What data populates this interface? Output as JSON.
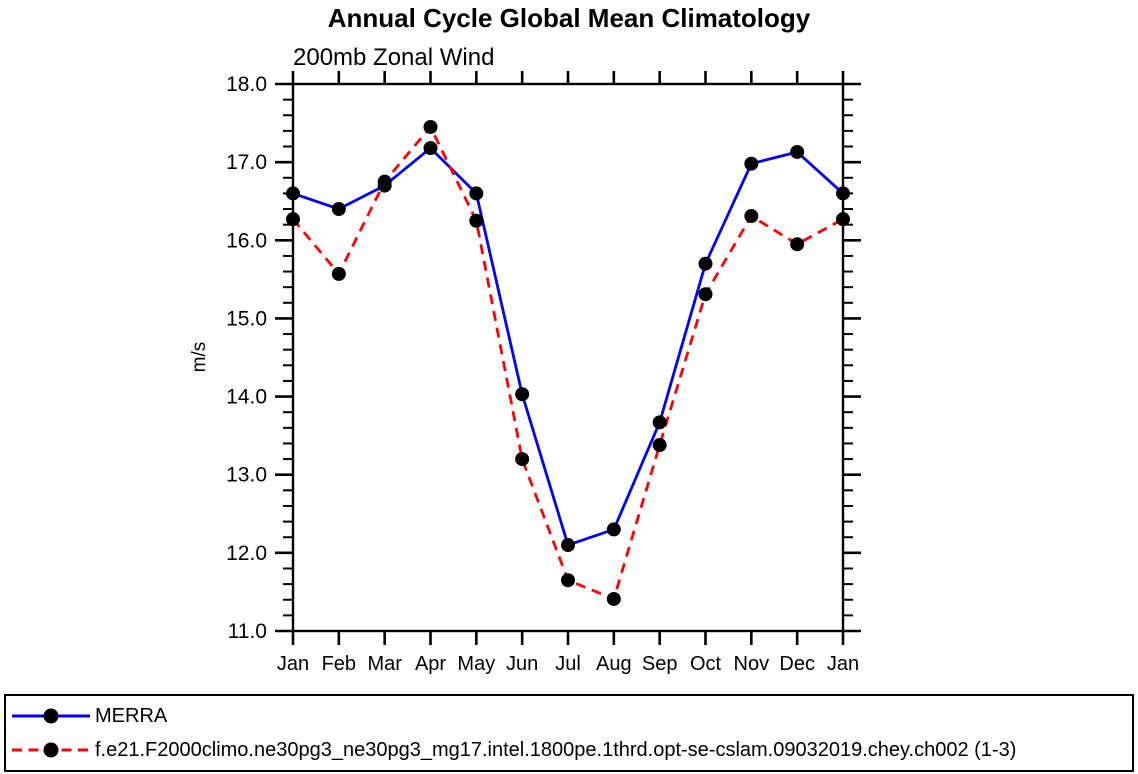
{
  "chart_data": {
    "type": "line",
    "title": "Annual Cycle Global Mean Climatology",
    "subtitle": "200mb Zonal Wind",
    "ylabel": "m/s",
    "xlabel": "",
    "categories": [
      "Jan",
      "Feb",
      "Mar",
      "Apr",
      "May",
      "Jun",
      "Jul",
      "Aug",
      "Sep",
      "Oct",
      "Nov",
      "Dec",
      "Jan"
    ],
    "series": [
      {
        "key": "merra",
        "name": "MERRA",
        "color": "#0000ff",
        "line_style": "solid",
        "marker": "filled-black-circle",
        "values": [
          16.6,
          16.4,
          16.7,
          17.18,
          16.6,
          14.03,
          12.1,
          12.3,
          13.67,
          15.7,
          16.98,
          17.13,
          16.6
        ]
      },
      {
        "key": "model",
        "name": "f.e21.F2000climo.ne30pg3_ne30pg3_mg17.intel.1800pe.1thrd.opt-se-cslam.09032019.chey.ch002 (1-3)",
        "color": "#ff0000",
        "line_style": "dashed",
        "marker": "filled-black-circle",
        "values": [
          16.27,
          15.57,
          16.75,
          17.45,
          16.25,
          13.2,
          11.65,
          11.41,
          13.38,
          15.31,
          16.31,
          15.95,
          16.27
        ]
      }
    ],
    "ylim": [
      11.0,
      18.0
    ],
    "ytick_step": 1.0,
    "yminor_step": 0.2,
    "ytick_labels": [
      "11.0",
      "12.0",
      "13.0",
      "14.0",
      "15.0",
      "16.0",
      "17.0",
      "18.0"
    ],
    "grid": false,
    "ticks": "outward-all-four-sides",
    "legend_position": "bottom-full-width-box",
    "axis_color": "#000000",
    "marker_color": "#000000",
    "background": "#ffffff"
  }
}
